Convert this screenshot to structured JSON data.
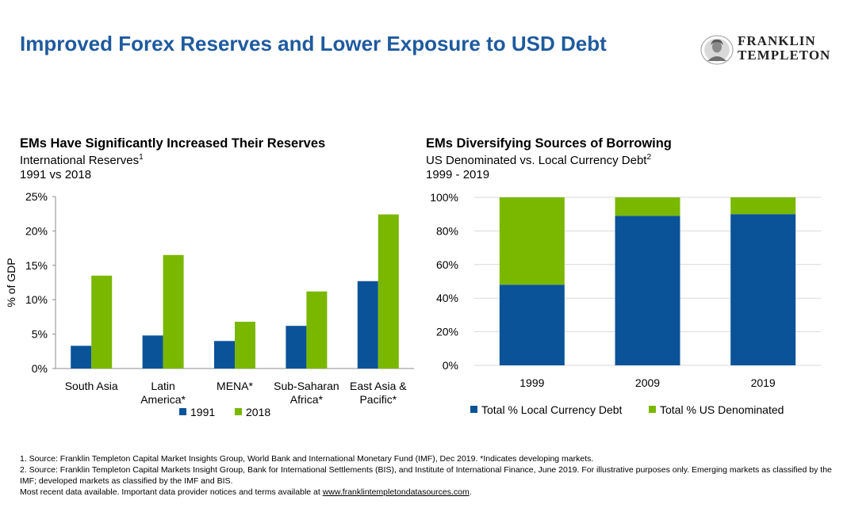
{
  "page": {
    "title": "Improved Forex Reserves and Lower Exposure to USD Debt",
    "logo": {
      "line1": "FRANKLIN",
      "line2": "TEMPLETON"
    }
  },
  "colors": {
    "title": "#1f5a9e",
    "blue": "#0a5398",
    "green": "#7ab800"
  },
  "left_chart": {
    "heading": "EMs Have Significantly Increased Their Reserves",
    "sub1": "International Reserves",
    "sub1_sup": "1",
    "sub2": "1991 vs 2018"
  },
  "right_chart": {
    "heading": "EMs Diversifying Sources of Borrowing",
    "sub1": "US Denominated vs. Local Currency Debt",
    "sub1_sup": "2",
    "sub2": "1999 - 2019"
  },
  "chart_data": [
    {
      "type": "bar",
      "title": "EMs Have Significantly Increased Their Reserves",
      "categories": [
        [
          "South Asia"
        ],
        [
          "Latin",
          "America*"
        ],
        [
          "MENA*"
        ],
        [
          "Sub-Saharan",
          "Africa*"
        ],
        [
          "East Asia &",
          "Pacific*"
        ]
      ],
      "series": [
        {
          "name": "1991",
          "color": "#0a5398",
          "values": [
            3.3,
            4.8,
            4.0,
            6.2,
            12.7
          ]
        },
        {
          "name": "2018",
          "color": "#7ab800",
          "values": [
            13.5,
            16.5,
            6.8,
            11.2,
            22.4
          ]
        }
      ],
      "ylabel": "% of GDP",
      "ylim": [
        0,
        25
      ],
      "yticks": [
        "0%",
        "5%",
        "10%",
        "15%",
        "20%",
        "25%"
      ],
      "ytick_values": [
        0,
        5,
        10,
        15,
        20,
        25
      ],
      "grid": false,
      "legend": "bottom"
    },
    {
      "type": "bar",
      "stacked": true,
      "title": "EMs Diversifying Sources of Borrowing",
      "categories": [
        "1999",
        "2009",
        "2019"
      ],
      "series": [
        {
          "name": "Total % Local Currency Debt",
          "color": "#0a5398",
          "values": [
            48,
            89,
            90
          ]
        },
        {
          "name": "Total % US Denominated",
          "color": "#7ab800",
          "values": [
            52,
            11,
            10
          ]
        }
      ],
      "ylim": [
        0,
        100
      ],
      "yticks": [
        "0%",
        "20%",
        "40%",
        "60%",
        "80%",
        "100%"
      ],
      "ytick_values": [
        0,
        20,
        40,
        60,
        80,
        100
      ],
      "grid": true,
      "legend": "bottom"
    }
  ],
  "footnotes": {
    "note1": "1. Source: Franklin Templeton Capital Market Insights Group, World Bank and International Monetary Fund (IMF), Dec 2019. *Indicates developing markets.",
    "note2": "2. Source: Franklin Templeton Capital Markets Insight Group, Bank for International Settlements (BIS), and Institute of International Finance, June 2019. For illustrative purposes only. Emerging markets as classified by the IMF; developed markets as classified by the IMF and BIS.",
    "note3_prefix": "Most recent data available. Important data provider notices and terms available at ",
    "note3_link": "www.franklintempletondatasources.com",
    "note3_suffix": "."
  }
}
